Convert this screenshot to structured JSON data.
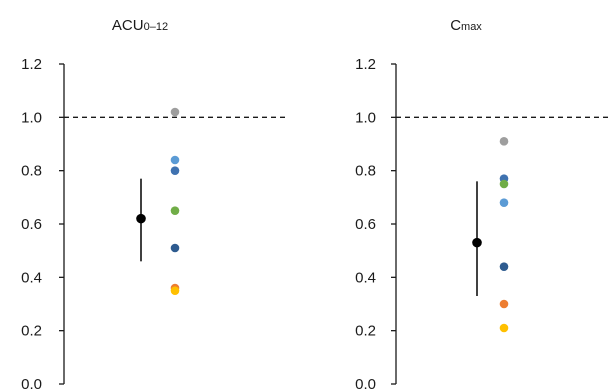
{
  "chart_data": [
    {
      "type": "scatter",
      "title": "ACU",
      "title_sub": "0–12",
      "ylim": [
        0.0,
        1.2
      ],
      "yticks": [
        "0.0",
        "0.2",
        "0.4",
        "0.6",
        "0.8",
        "1.0",
        "1.2"
      ],
      "reference_line": 1.0,
      "summary": {
        "value": 0.62,
        "low": 0.46,
        "high": 0.77,
        "color": "#000000"
      },
      "points": [
        {
          "value": 1.02,
          "color": "#9e9e9e"
        },
        {
          "value": 0.84,
          "color": "#5b9bd5"
        },
        {
          "value": 0.8,
          "color": "#3f72b0"
        },
        {
          "value": 0.65,
          "color": "#70ad47"
        },
        {
          "value": 0.51,
          "color": "#2e5b8f"
        },
        {
          "value": 0.36,
          "color": "#ed7d31"
        },
        {
          "value": 0.35,
          "color": "#ffc000"
        }
      ]
    },
    {
      "type": "scatter",
      "title": "C",
      "title_sub": "max",
      "ylim": [
        0.0,
        1.2
      ],
      "yticks": [
        "0.0",
        "0.2",
        "0.4",
        "0.6",
        "0.8",
        "1.0",
        "1.2"
      ],
      "reference_line": 1.0,
      "summary": {
        "value": 0.53,
        "low": 0.33,
        "high": 0.76,
        "color": "#000000"
      },
      "points": [
        {
          "value": 0.91,
          "color": "#9e9e9e"
        },
        {
          "value": 0.77,
          "color": "#3f72b0"
        },
        {
          "value": 0.75,
          "color": "#70ad47"
        },
        {
          "value": 0.68,
          "color": "#5b9bd5"
        },
        {
          "value": 0.44,
          "color": "#2e5b8f"
        },
        {
          "value": 0.3,
          "color": "#ed7d31"
        },
        {
          "value": 0.21,
          "color": "#ffc000"
        }
      ]
    }
  ]
}
